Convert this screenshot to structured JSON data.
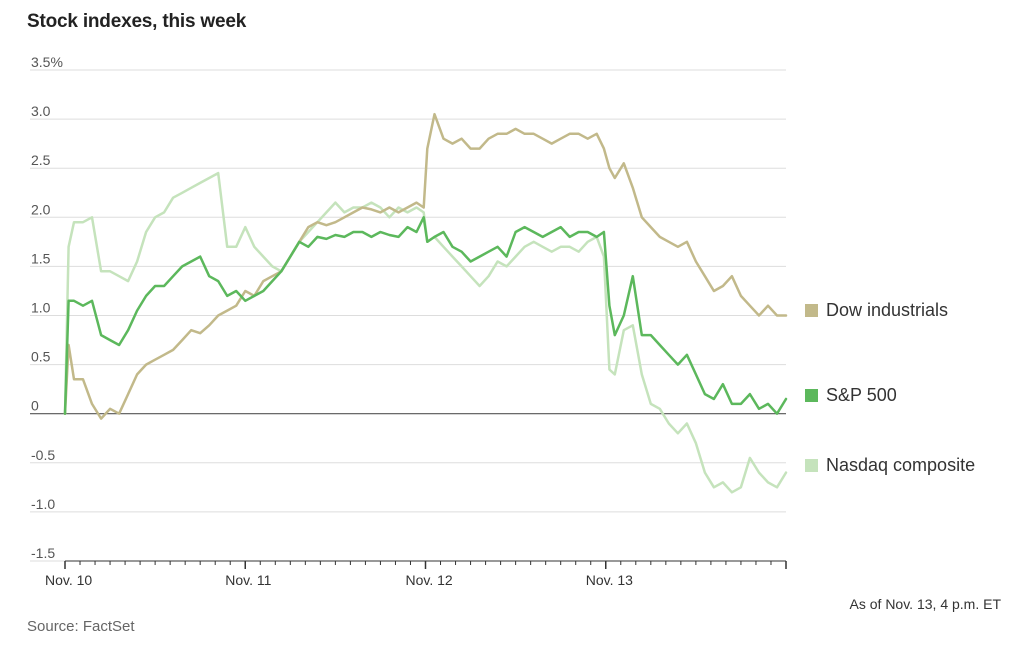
{
  "title": "Stock indexes, this week",
  "note": "As of Nov. 13, 4 p.m. ET",
  "source": "Source: FactSet",
  "chart_data": {
    "type": "line",
    "title": "Stock indexes, this week",
    "xlabel": "",
    "ylabel": "",
    "ylim": [
      -1.5,
      3.5
    ],
    "xlim": [
      0,
      4
    ],
    "y_ticks": [
      3.5,
      3.0,
      2.5,
      2.0,
      1.5,
      1.0,
      0.5,
      0,
      -0.5,
      -1.0,
      -1.5
    ],
    "y_tick_labels": [
      "3.5%",
      "3.0",
      "2.5",
      "2.0",
      "1.5",
      "1.0",
      "0.5",
      "0",
      "-0.5",
      "-1.0",
      "-1.5"
    ],
    "x_ticks": [
      0,
      1,
      2,
      3
    ],
    "x_tick_labels": [
      "Nov. 10",
      "Nov. 11",
      "Nov. 12",
      "Nov. 13"
    ],
    "grid": true,
    "legend_position": "right",
    "series": [
      {
        "name": "Dow industrials",
        "color": "#c2b98a",
        "x": [
          0,
          0.02,
          0.05,
          0.1,
          0.15,
          0.2,
          0.25,
          0.3,
          0.35,
          0.4,
          0.45,
          0.5,
          0.55,
          0.6,
          0.65,
          0.7,
          0.75,
          0.8,
          0.85,
          0.9,
          0.95,
          1.0,
          1.05,
          1.1,
          1.15,
          1.2,
          1.25,
          1.3,
          1.35,
          1.4,
          1.45,
          1.5,
          1.55,
          1.6,
          1.65,
          1.7,
          1.75,
          1.8,
          1.85,
          1.9,
          1.95,
          1.99,
          2.01,
          2.05,
          2.1,
          2.15,
          2.2,
          2.25,
          2.3,
          2.35,
          2.4,
          2.45,
          2.5,
          2.55,
          2.6,
          2.65,
          2.7,
          2.75,
          2.8,
          2.85,
          2.9,
          2.95,
          2.99,
          3.02,
          3.05,
          3.1,
          3.15,
          3.2,
          3.25,
          3.3,
          3.35,
          3.4,
          3.45,
          3.5,
          3.55,
          3.6,
          3.65,
          3.7,
          3.75,
          3.8,
          3.85,
          3.9,
          3.95,
          4.0
        ],
        "values": [
          0.0,
          0.7,
          0.35,
          0.35,
          0.1,
          -0.05,
          0.05,
          0.0,
          0.2,
          0.4,
          0.5,
          0.55,
          0.6,
          0.65,
          0.75,
          0.85,
          0.82,
          0.9,
          1.0,
          1.05,
          1.1,
          1.25,
          1.2,
          1.35,
          1.4,
          1.45,
          1.6,
          1.75,
          1.9,
          1.95,
          1.92,
          1.95,
          2.0,
          2.05,
          2.1,
          2.08,
          2.05,
          2.1,
          2.05,
          2.1,
          2.15,
          2.1,
          2.7,
          3.05,
          2.8,
          2.75,
          2.8,
          2.7,
          2.7,
          2.8,
          2.85,
          2.85,
          2.9,
          2.85,
          2.85,
          2.8,
          2.75,
          2.8,
          2.85,
          2.85,
          2.8,
          2.85,
          2.7,
          2.5,
          2.4,
          2.55,
          2.3,
          2.0,
          1.9,
          1.8,
          1.75,
          1.7,
          1.75,
          1.55,
          1.4,
          1.25,
          1.3,
          1.4,
          1.2,
          1.1,
          1.0,
          1.1,
          1.0,
          1.0
        ]
      },
      {
        "name": "S&P 500",
        "color": "#5cb85c",
        "x": [
          0,
          0.02,
          0.05,
          0.1,
          0.15,
          0.2,
          0.25,
          0.3,
          0.35,
          0.4,
          0.45,
          0.5,
          0.55,
          0.6,
          0.65,
          0.7,
          0.75,
          0.8,
          0.85,
          0.9,
          0.95,
          1.0,
          1.05,
          1.1,
          1.15,
          1.2,
          1.25,
          1.3,
          1.35,
          1.4,
          1.45,
          1.5,
          1.55,
          1.6,
          1.65,
          1.7,
          1.75,
          1.8,
          1.85,
          1.9,
          1.95,
          1.99,
          2.01,
          2.05,
          2.1,
          2.15,
          2.2,
          2.25,
          2.3,
          2.35,
          2.4,
          2.45,
          2.5,
          2.55,
          2.6,
          2.65,
          2.7,
          2.75,
          2.8,
          2.85,
          2.9,
          2.95,
          2.99,
          3.02,
          3.05,
          3.1,
          3.15,
          3.2,
          3.25,
          3.3,
          3.35,
          3.4,
          3.45,
          3.5,
          3.55,
          3.6,
          3.65,
          3.7,
          3.75,
          3.8,
          3.85,
          3.9,
          3.95,
          4.0
        ],
        "values": [
          0.0,
          1.15,
          1.15,
          1.1,
          1.15,
          0.8,
          0.75,
          0.7,
          0.85,
          1.05,
          1.2,
          1.3,
          1.3,
          1.4,
          1.5,
          1.55,
          1.6,
          1.4,
          1.35,
          1.2,
          1.25,
          1.15,
          1.2,
          1.25,
          1.35,
          1.45,
          1.6,
          1.75,
          1.7,
          1.8,
          1.78,
          1.82,
          1.8,
          1.85,
          1.85,
          1.8,
          1.85,
          1.82,
          1.8,
          1.9,
          1.85,
          2.0,
          1.75,
          1.8,
          1.85,
          1.7,
          1.65,
          1.55,
          1.6,
          1.65,
          1.7,
          1.6,
          1.85,
          1.9,
          1.85,
          1.8,
          1.85,
          1.9,
          1.8,
          1.85,
          1.85,
          1.8,
          1.85,
          1.1,
          0.8,
          1.0,
          1.4,
          0.8,
          0.8,
          0.7,
          0.6,
          0.5,
          0.6,
          0.4,
          0.2,
          0.15,
          0.3,
          0.1,
          0.1,
          0.2,
          0.05,
          0.1,
          0.0,
          0.15
        ]
      },
      {
        "name": "Nasdaq composite",
        "color": "#c5e3bc",
        "x": [
          0,
          0.02,
          0.05,
          0.1,
          0.15,
          0.2,
          0.25,
          0.3,
          0.35,
          0.4,
          0.45,
          0.5,
          0.55,
          0.6,
          0.65,
          0.7,
          0.75,
          0.8,
          0.85,
          0.9,
          0.95,
          1.0,
          1.05,
          1.1,
          1.15,
          1.2,
          1.25,
          1.3,
          1.35,
          1.4,
          1.45,
          1.5,
          1.55,
          1.6,
          1.65,
          1.7,
          1.75,
          1.8,
          1.85,
          1.9,
          1.95,
          1.99,
          2.01,
          2.05,
          2.1,
          2.15,
          2.2,
          2.25,
          2.3,
          2.35,
          2.4,
          2.45,
          2.5,
          2.55,
          2.6,
          2.65,
          2.7,
          2.75,
          2.8,
          2.85,
          2.9,
          2.95,
          2.99,
          3.02,
          3.05,
          3.1,
          3.15,
          3.2,
          3.25,
          3.3,
          3.35,
          3.4,
          3.45,
          3.5,
          3.55,
          3.6,
          3.65,
          3.7,
          3.75,
          3.8,
          3.85,
          3.9,
          3.95,
          4.0
        ],
        "values": [
          0.0,
          1.7,
          1.95,
          1.95,
          2.0,
          1.45,
          1.45,
          1.4,
          1.35,
          1.55,
          1.85,
          2.0,
          2.05,
          2.2,
          2.25,
          2.3,
          2.35,
          2.4,
          2.45,
          1.7,
          1.7,
          1.9,
          1.7,
          1.6,
          1.5,
          1.45,
          1.6,
          1.75,
          1.85,
          1.95,
          2.05,
          2.15,
          2.05,
          2.1,
          2.1,
          2.15,
          2.1,
          2.0,
          2.1,
          2.05,
          2.1,
          2.05,
          1.75,
          1.8,
          1.7,
          1.6,
          1.5,
          1.4,
          1.3,
          1.4,
          1.55,
          1.5,
          1.6,
          1.7,
          1.75,
          1.7,
          1.65,
          1.7,
          1.7,
          1.65,
          1.75,
          1.8,
          1.6,
          0.45,
          0.4,
          0.85,
          0.9,
          0.4,
          0.1,
          0.05,
          -0.1,
          -0.2,
          -0.1,
          -0.3,
          -0.6,
          -0.75,
          -0.7,
          -0.8,
          -0.75,
          -0.45,
          -0.6,
          -0.7,
          -0.75,
          -0.6
        ]
      }
    ]
  }
}
